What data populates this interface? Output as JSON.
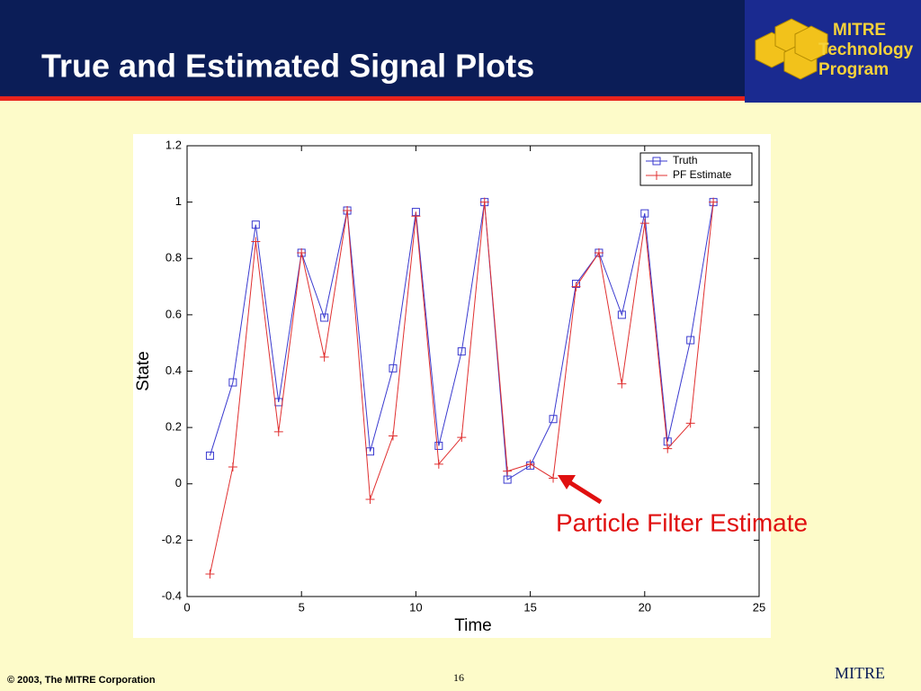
{
  "header": {
    "title": "True and Estimated Signal Plots"
  },
  "logo": {
    "lines": [
      "MITRE",
      "Technology",
      "Program"
    ]
  },
  "chart_data": {
    "type": "line",
    "xlabel": "Time",
    "ylabel": "State",
    "x": [
      1,
      2,
      3,
      4,
      5,
      6,
      7,
      8,
      9,
      10,
      11,
      12,
      13,
      14,
      15,
      16,
      17,
      18,
      19,
      20,
      21,
      22,
      23
    ],
    "series": [
      {
        "name": "Truth",
        "color": "#3a3acf",
        "marker": "square",
        "values": [
          0.1,
          0.36,
          0.92,
          0.29,
          0.82,
          0.59,
          0.97,
          0.115,
          0.41,
          0.965,
          0.135,
          0.47,
          1.0,
          0.015,
          0.065,
          0.23,
          0.71,
          0.82,
          0.6,
          0.96,
          0.15,
          0.51,
          1.0
        ]
      },
      {
        "name": "PF Estimate",
        "color": "#e03030",
        "marker": "plus",
        "values": [
          -0.32,
          0.06,
          0.86,
          0.185,
          0.82,
          0.45,
          0.97,
          -0.055,
          0.17,
          0.95,
          0.07,
          0.165,
          1.0,
          0.045,
          0.07,
          0.02,
          0.7,
          0.82,
          0.355,
          0.925,
          0.125,
          0.215,
          1.0
        ]
      }
    ],
    "xlim": [
      0,
      25
    ],
    "xticks": [
      0,
      5,
      10,
      15,
      20,
      25
    ],
    "ylim": [
      -0.4,
      1.2
    ],
    "yticks": [
      -0.4,
      -0.2,
      0,
      0.2,
      0.4,
      0.6,
      0.8,
      1,
      1.2
    ],
    "grid": false,
    "legend": "upper right",
    "annotation": "Particle Filter Estimate"
  },
  "footer": {
    "copyright": "© 2003, The MITRE Corporation",
    "page": "16",
    "brand": "MITRE"
  }
}
